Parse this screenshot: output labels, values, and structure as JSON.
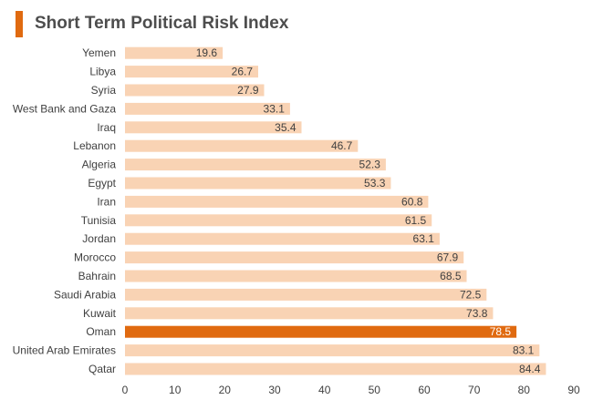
{
  "chart_data": {
    "type": "bar",
    "orientation": "horizontal",
    "title": "Short Term Political Risk Index",
    "categories": [
      "Yemen",
      "Libya",
      "Syria",
      "West Bank and Gaza",
      "Iraq",
      "Lebanon",
      "Algeria",
      "Egypt",
      "Iran",
      "Tunisia",
      "Jordan",
      "Morocco",
      "Bahrain",
      "Saudi Arabia",
      "Kuwait",
      "Oman",
      "United Arab Emirates",
      "Qatar"
    ],
    "values": [
      19.6,
      26.7,
      27.9,
      33.1,
      35.4,
      46.7,
      52.3,
      53.3,
      60.8,
      61.5,
      63.1,
      67.9,
      68.5,
      72.5,
      73.8,
      78.5,
      83.1,
      84.4
    ],
    "value_labels": [
      "19.6",
      "26.7",
      "27.9",
      "33.1",
      "35.4",
      "46.7",
      "52.3",
      "53.3",
      "60.8",
      "61.5",
      "63.1",
      "67.9",
      "68.5",
      "72.5",
      "73.8",
      "78.5",
      "83.1",
      "84.4"
    ],
    "highlight": "Oman",
    "xlim": [
      0,
      90
    ],
    "xticks": [
      "0",
      "10",
      "20",
      "30",
      "40",
      "50",
      "60",
      "70",
      "80",
      "90"
    ],
    "grid": false,
    "colors": {
      "bar": "#f9d3b4",
      "highlight_bar": "#e06a10",
      "title_accent": "#e06a10"
    }
  }
}
